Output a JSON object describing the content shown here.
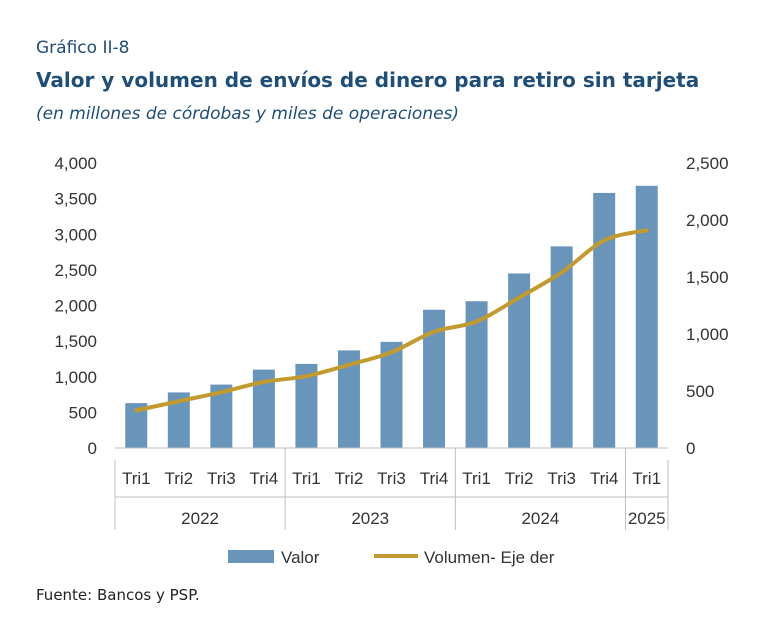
{
  "header": {
    "label": "Gráfico II-8",
    "title": "Valor y volumen de envíos de dinero para retiro sin tarjeta",
    "subtitle": "(en millones de córdobas y miles de operaciones)"
  },
  "source": "Fuente: Bancos y PSP.",
  "colors": {
    "bar": "#6a95bb",
    "line": "#c29a2e",
    "axis": "#bfbfbf",
    "text": "#333333"
  },
  "chart_data": {
    "type": "bar",
    "categories": [
      "Tri1",
      "Tri2",
      "Tri3",
      "Tri4",
      "Tri1",
      "Tri2",
      "Tri3",
      "Tri4",
      "Tri1",
      "Tri2",
      "Tri3",
      "Tri4",
      "Tri1"
    ],
    "groups": [
      {
        "label": "2022",
        "count": 4
      },
      {
        "label": "2023",
        "count": 4
      },
      {
        "label": "2024",
        "count": 4
      },
      {
        "label": "2025",
        "count": 1
      }
    ],
    "series": [
      {
        "name": "Valor",
        "type": "bar",
        "axis": "left",
        "values": [
          630,
          780,
          890,
          1100,
          1180,
          1370,
          1490,
          1940,
          2060,
          2450,
          2830,
          3580,
          3680
        ]
      },
      {
        "name": "Volumen- Eje der",
        "type": "line",
        "axis": "right",
        "values": [
          330,
          410,
          490,
          580,
          630,
          730,
          840,
          1020,
          1110,
          1320,
          1540,
          1820,
          1910
        ]
      }
    ],
    "y_left": {
      "min": 0,
      "max": 4000,
      "ticks": [
        0,
        500,
        1000,
        1500,
        2000,
        2500,
        3000,
        3500,
        4000
      ],
      "tick_labels": [
        "0",
        "500",
        "1,000",
        "1,500",
        "2,000",
        "2,500",
        "3,000",
        "3,500",
        "4,000"
      ]
    },
    "y_right": {
      "min": 0,
      "max": 2500,
      "ticks": [
        0,
        500,
        1000,
        1500,
        2000,
        2500
      ],
      "tick_labels": [
        "0",
        "500",
        "1,000",
        "1,500",
        "2,000",
        "2,500"
      ]
    },
    "legend_position": "bottom",
    "grid": false
  }
}
